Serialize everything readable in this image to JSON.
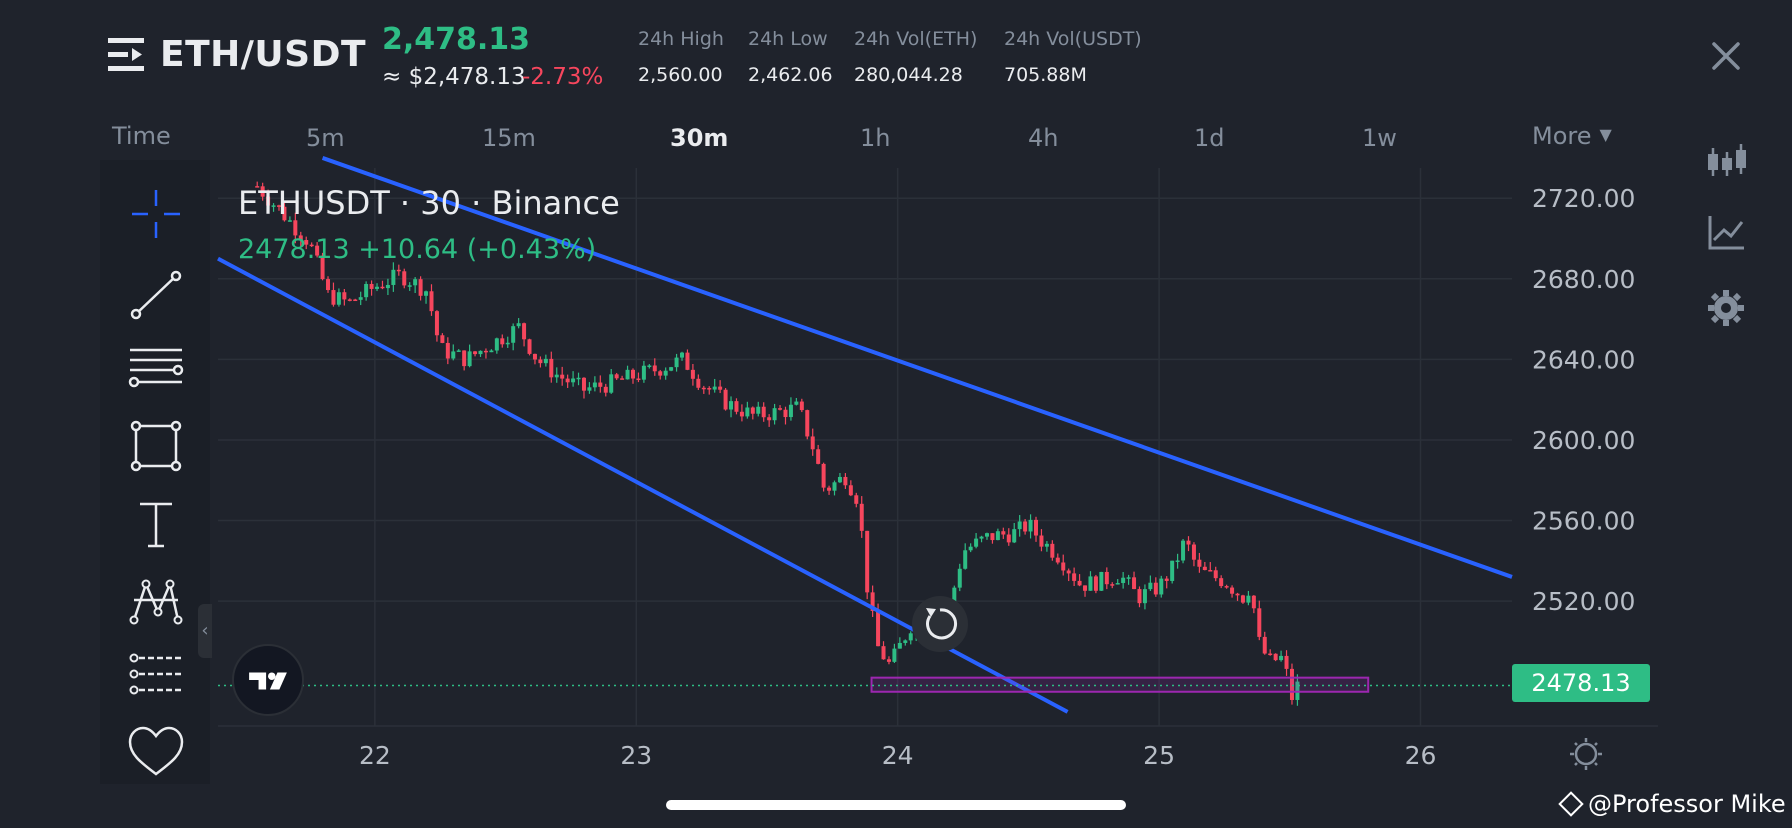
{
  "header": {
    "pair": "ETH/USDT",
    "last_price": "2,478.13",
    "fiat_price": "≈ $2,478.13",
    "change_pct": "-2.73%",
    "stats": [
      {
        "label": "24h High",
        "value": "2,560.00"
      },
      {
        "label": "24h Low",
        "value": "2,462.06"
      },
      {
        "label": "24h Vol(ETH)",
        "value": "280,044.28"
      },
      {
        "label": "24h Vol(USDT)",
        "value": "705.88M"
      }
    ]
  },
  "intervals": {
    "time_label": "Time",
    "items": [
      "5m",
      "15m",
      "30m",
      "1h",
      "4h",
      "1d",
      "1w"
    ],
    "active": "30m",
    "more_label": "More"
  },
  "toolbar": {
    "tools": [
      "crosshair-icon",
      "trend-line-icon",
      "horizontal-lines-icon",
      "rectangle-icon",
      "text-icon",
      "pattern-icon",
      "measure-icon",
      "favorite-heart-icon"
    ]
  },
  "sidebar": {
    "icons": [
      "candlestick-type-icon",
      "indicators-icon",
      "settings-gear-icon"
    ]
  },
  "chart_legend": {
    "title": "ETHUSDT · 30 · Binance",
    "stats": "2478.13  +10.64 (+0.43%)"
  },
  "chart_data": {
    "type": "candlestick",
    "symbol": "ETHUSDT",
    "interval": "30",
    "exchange": "Binance",
    "x_ticks": [
      "22",
      "23",
      "24",
      "25",
      "26"
    ],
    "y_ticks": [
      "2720.00",
      "2680.00",
      "2640.00",
      "2600.00",
      "2560.00",
      "2520.00"
    ],
    "ylim": [
      2458,
      2735
    ],
    "xlim": [
      21.4,
      26.35
    ],
    "last_price": 2478.13,
    "last_price_label": "2478.13",
    "up_color": "#2ebd85",
    "down_color": "#f6465d",
    "closes": [
      {
        "x": 21.55,
        "y": 2726
      },
      {
        "x": 21.65,
        "y": 2712
      },
      {
        "x": 21.75,
        "y": 2698
      },
      {
        "x": 21.82,
        "y": 2672
      },
      {
        "x": 21.9,
        "y": 2668
      },
      {
        "x": 22.0,
        "y": 2676
      },
      {
        "x": 22.1,
        "y": 2682
      },
      {
        "x": 22.2,
        "y": 2674
      },
      {
        "x": 22.25,
        "y": 2645
      },
      {
        "x": 22.35,
        "y": 2640
      },
      {
        "x": 22.45,
        "y": 2648
      },
      {
        "x": 22.55,
        "y": 2656
      },
      {
        "x": 22.62,
        "y": 2640
      },
      {
        "x": 22.7,
        "y": 2632
      },
      {
        "x": 22.8,
        "y": 2625
      },
      {
        "x": 22.9,
        "y": 2628
      },
      {
        "x": 23.0,
        "y": 2632
      },
      {
        "x": 23.1,
        "y": 2636
      },
      {
        "x": 23.18,
        "y": 2640
      },
      {
        "x": 23.25,
        "y": 2628
      },
      {
        "x": 23.35,
        "y": 2618
      },
      {
        "x": 23.45,
        "y": 2612
      },
      {
        "x": 23.55,
        "y": 2614
      },
      {
        "x": 23.62,
        "y": 2616
      },
      {
        "x": 23.68,
        "y": 2595
      },
      {
        "x": 23.72,
        "y": 2575
      },
      {
        "x": 23.8,
        "y": 2582
      },
      {
        "x": 23.85,
        "y": 2570
      },
      {
        "x": 23.88,
        "y": 2530
      },
      {
        "x": 23.92,
        "y": 2498
      },
      {
        "x": 23.97,
        "y": 2488
      },
      {
        "x": 24.05,
        "y": 2508
      },
      {
        "x": 24.12,
        "y": 2515
      },
      {
        "x": 24.2,
        "y": 2518
      },
      {
        "x": 24.25,
        "y": 2545
      },
      {
        "x": 24.35,
        "y": 2552
      },
      {
        "x": 24.45,
        "y": 2554
      },
      {
        "x": 24.5,
        "y": 2558
      },
      {
        "x": 24.55,
        "y": 2550
      },
      {
        "x": 24.62,
        "y": 2542
      },
      {
        "x": 24.7,
        "y": 2528
      },
      {
        "x": 24.78,
        "y": 2530
      },
      {
        "x": 24.85,
        "y": 2533
      },
      {
        "x": 24.92,
        "y": 2522
      },
      {
        "x": 25.0,
        "y": 2527
      },
      {
        "x": 25.05,
        "y": 2536
      },
      {
        "x": 25.1,
        "y": 2550
      },
      {
        "x": 25.15,
        "y": 2535
      },
      {
        "x": 25.25,
        "y": 2530
      },
      {
        "x": 25.32,
        "y": 2522
      },
      {
        "x": 25.35,
        "y": 2528
      },
      {
        "x": 25.38,
        "y": 2500
      },
      {
        "x": 25.42,
        "y": 2490
      },
      {
        "x": 25.48,
        "y": 2492
      },
      {
        "x": 25.5,
        "y": 2470
      },
      {
        "x": 25.53,
        "y": 2478
      }
    ],
    "drawings": [
      {
        "name": "upper-trend-line",
        "color": "#2962ff",
        "points": [
          [
            21.8,
            2740
          ],
          [
            26.35,
            2532
          ]
        ]
      },
      {
        "name": "lower-trend-line",
        "color": "#2962ff",
        "points": [
          [
            21.4,
            2690
          ],
          [
            24.65,
            2465
          ]
        ]
      },
      {
        "name": "support-zone",
        "color": "#9c27b0",
        "y_range": [
          2475,
          2482
        ],
        "x_range": [
          23.9,
          25.8
        ]
      }
    ]
  },
  "watermark": "@Professor Mike"
}
